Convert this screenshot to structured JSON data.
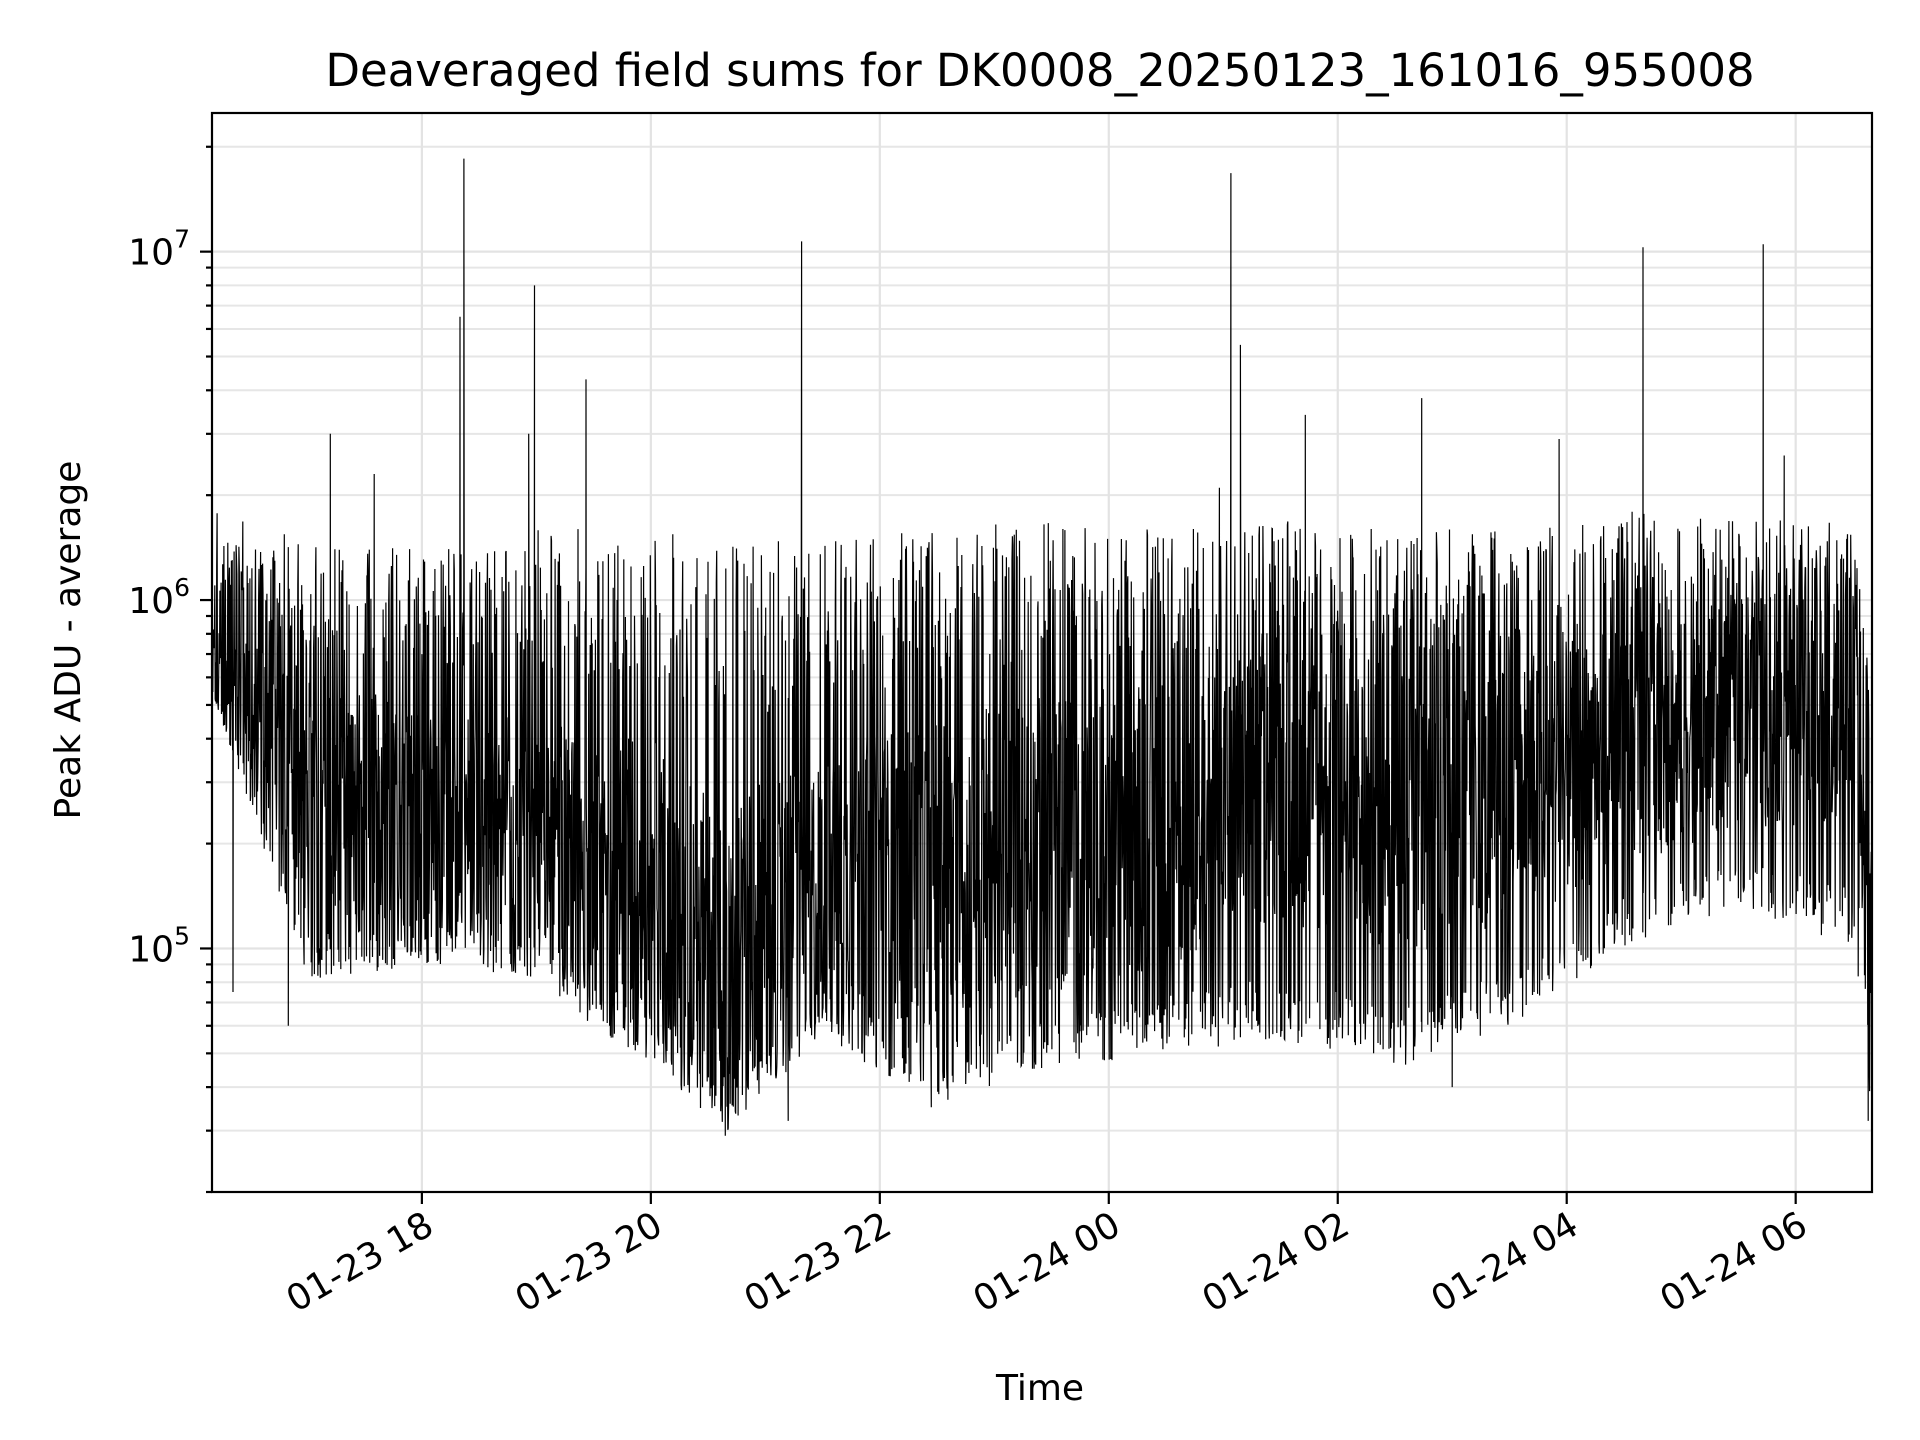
{
  "chart_data": {
    "type": "line",
    "title": "Deaveraged field sums for DK0008_20250123_161016_955008",
    "xlabel": "Time",
    "ylabel": "Peak ADU - average",
    "yscale": "log",
    "grid": true,
    "xlim": [
      "2025-01-23 16:10",
      "2025-01-24 06:40"
    ],
    "ylim": [
      20000,
      25000000
    ],
    "x_ticks": [
      {
        "value": "2025-01-23 18:00",
        "label": "01-23 18"
      },
      {
        "value": "2025-01-23 20:00",
        "label": "01-23 20"
      },
      {
        "value": "2025-01-23 22:00",
        "label": "01-23 22"
      },
      {
        "value": "2025-01-24 00:00",
        "label": "01-24 00"
      },
      {
        "value": "2025-01-24 02:00",
        "label": "01-24 02"
      },
      {
        "value": "2025-01-24 04:00",
        "label": "01-24 04"
      },
      {
        "value": "2025-01-24 06:00",
        "label": "01-24 06"
      }
    ],
    "y_ticks": [
      {
        "value": 100000,
        "base": "10",
        "exp": "5"
      },
      {
        "value": 1000000,
        "base": "10",
        "exp": "6"
      },
      {
        "value": 10000000,
        "base": "10",
        "exp": "7"
      }
    ],
    "color": "#000000",
    "envelope": [
      {
        "t": "2025-01-23 16:10",
        "low": 550000,
        "high": 1800000
      },
      {
        "t": "2025-01-23 17:00",
        "low": 80000,
        "high": 1500000
      },
      {
        "t": "2025-01-23 18:00",
        "low": 90000,
        "high": 1400000
      },
      {
        "t": "2025-01-23 19:00",
        "low": 80000,
        "high": 1600000
      },
      {
        "t": "2025-01-23 20:00",
        "low": 45000,
        "high": 1600000
      },
      {
        "t": "2025-01-23 20:40",
        "low": 30000,
        "high": 1500000
      },
      {
        "t": "2025-01-23 21:30",
        "low": 55000,
        "high": 1500000
      },
      {
        "t": "2025-01-23 22:30",
        "low": 36000,
        "high": 1600000
      },
      {
        "t": "2025-01-23 23:30",
        "low": 45000,
        "high": 1700000
      },
      {
        "t": "2025-01-24 00:30",
        "low": 50000,
        "high": 1600000
      },
      {
        "t": "2025-01-24 01:30",
        "low": 55000,
        "high": 1700000
      },
      {
        "t": "2025-01-24 02:30",
        "low": 45000,
        "high": 1600000
      },
      {
        "t": "2025-01-24 03:30",
        "low": 60000,
        "high": 1600000
      },
      {
        "t": "2025-01-24 04:30",
        "low": 100000,
        "high": 1800000
      },
      {
        "t": "2025-01-24 05:30",
        "low": 130000,
        "high": 1700000
      },
      {
        "t": "2025-01-24 06:30",
        "low": 100000,
        "high": 1700000
      },
      {
        "t": "2025-01-24 06:40",
        "low": 32000,
        "high": 600000
      }
    ],
    "trend": [
      {
        "t": "2025-01-23 16:10",
        "value": 600000
      },
      {
        "t": "2025-01-23 17:00",
        "value": 280000
      },
      {
        "t": "2025-01-23 18:00",
        "value": 240000
      },
      {
        "t": "2025-01-23 19:00",
        "value": 200000
      },
      {
        "t": "2025-01-23 20:00",
        "value": 150000
      },
      {
        "t": "2025-01-23 20:40",
        "value": 90000
      },
      {
        "t": "2025-01-23 21:30",
        "value": 150000
      },
      {
        "t": "2025-01-23 22:30",
        "value": 170000
      },
      {
        "t": "2025-01-23 23:30",
        "value": 200000
      },
      {
        "t": "2025-01-24 00:30",
        "value": 230000
      },
      {
        "t": "2025-01-24 01:30",
        "value": 300000
      },
      {
        "t": "2025-01-24 02:30",
        "value": 250000
      },
      {
        "t": "2025-01-24 03:30",
        "value": 280000
      },
      {
        "t": "2025-01-24 04:30",
        "value": 380000
      },
      {
        "t": "2025-01-24 05:30",
        "value": 450000
      },
      {
        "t": "2025-01-24 06:30",
        "value": 500000
      },
      {
        "t": "2025-01-24 06:40",
        "value": 80000
      }
    ],
    "spikes": [
      {
        "t": "2025-01-23 18:22",
        "value": 18500000
      },
      {
        "t": "2025-01-23 18:20",
        "value": 6500000
      },
      {
        "t": "2025-01-23 18:59",
        "value": 8000000
      },
      {
        "t": "2025-01-23 18:56",
        "value": 3000000
      },
      {
        "t": "2025-01-23 19:26",
        "value": 4300000
      },
      {
        "t": "2025-01-23 17:12",
        "value": 3000000
      },
      {
        "t": "2025-01-23 17:35",
        "value": 2300000
      },
      {
        "t": "2025-01-23 21:19",
        "value": 10700000
      },
      {
        "t": "2025-01-24 00:58",
        "value": 2100000
      },
      {
        "t": "2025-01-24 01:04",
        "value": 16800000
      },
      {
        "t": "2025-01-24 01:09",
        "value": 5400000
      },
      {
        "t": "2025-01-24 01:43",
        "value": 3400000
      },
      {
        "t": "2025-01-24 02:44",
        "value": 3800000
      },
      {
        "t": "2025-01-24 03:56",
        "value": 2900000
      },
      {
        "t": "2025-01-24 04:40",
        "value": 10300000
      },
      {
        "t": "2025-01-24 05:43",
        "value": 10500000
      },
      {
        "t": "2025-01-24 05:54",
        "value": 2600000
      }
    ],
    "dips": [
      {
        "t": "2025-01-23 16:21",
        "value": 75000
      },
      {
        "t": "2025-01-23 16:50",
        "value": 60000
      },
      {
        "t": "2025-01-23 20:39",
        "value": 29000
      },
      {
        "t": "2025-01-23 21:12",
        "value": 32000
      },
      {
        "t": "2025-01-23 22:27",
        "value": 35000
      },
      {
        "t": "2025-01-24 03:00",
        "value": 40000
      },
      {
        "t": "2025-01-24 06:38",
        "value": 32000
      }
    ]
  }
}
